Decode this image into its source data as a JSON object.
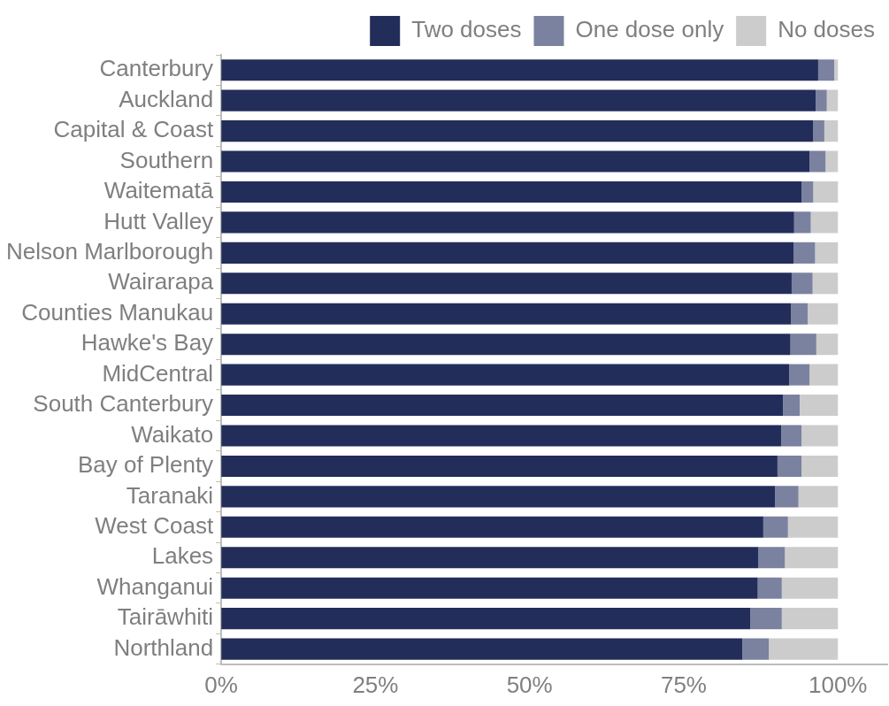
{
  "chart_data": {
    "type": "bar",
    "orientation": "horizontal",
    "stacked": true,
    "categories": [
      "Canterbury",
      "Auckland",
      "Capital & Coast",
      "Southern",
      "Waitematā",
      "Hutt Valley",
      "Nelson Marlborough",
      "Wairarapa",
      "Counties Manukau",
      "Hawke's Bay",
      "MidCentral",
      "South Canterbury",
      "Waikato",
      "Bay of Plenty",
      "Taranaki",
      "West Coast",
      "Lakes",
      "Whanganui",
      "Tairāwhiti",
      "Northland"
    ],
    "series": [
      {
        "name": "Two doses",
        "color": "#232d5a",
        "values": [
          96.8,
          96.4,
          96.0,
          95.4,
          94.1,
          92.9,
          92.8,
          92.5,
          92.4,
          92.3,
          92.1,
          91.1,
          90.8,
          90.2,
          89.8,
          87.9,
          87.1,
          87.0,
          85.8,
          84.5
        ]
      },
      {
        "name": "One dose only",
        "color": "#7a829f",
        "values": [
          2.6,
          1.8,
          1.8,
          2.6,
          1.9,
          2.7,
          3.5,
          3.4,
          2.7,
          4.2,
          3.3,
          2.7,
          3.3,
          3.9,
          3.8,
          4.0,
          4.3,
          3.9,
          5.1,
          4.3
        ]
      },
      {
        "name": "No doses",
        "color": "#cccccc",
        "values": [
          0.6,
          1.8,
          2.2,
          2.0,
          4.0,
          4.4,
          3.7,
          4.1,
          4.9,
          3.5,
          4.6,
          6.2,
          5.9,
          5.9,
          6.4,
          8.1,
          8.6,
          9.1,
          9.1,
          11.2
        ]
      }
    ],
    "xlim": [
      0,
      108
    ],
    "xticks": [
      {
        "value": 0,
        "label": "0%"
      },
      {
        "value": 25,
        "label": "25%"
      },
      {
        "value": 50,
        "label": "50%"
      },
      {
        "value": 75,
        "label": "75%"
      },
      {
        "value": 100,
        "label": "100%"
      }
    ],
    "grid": false,
    "legend": "top right"
  }
}
